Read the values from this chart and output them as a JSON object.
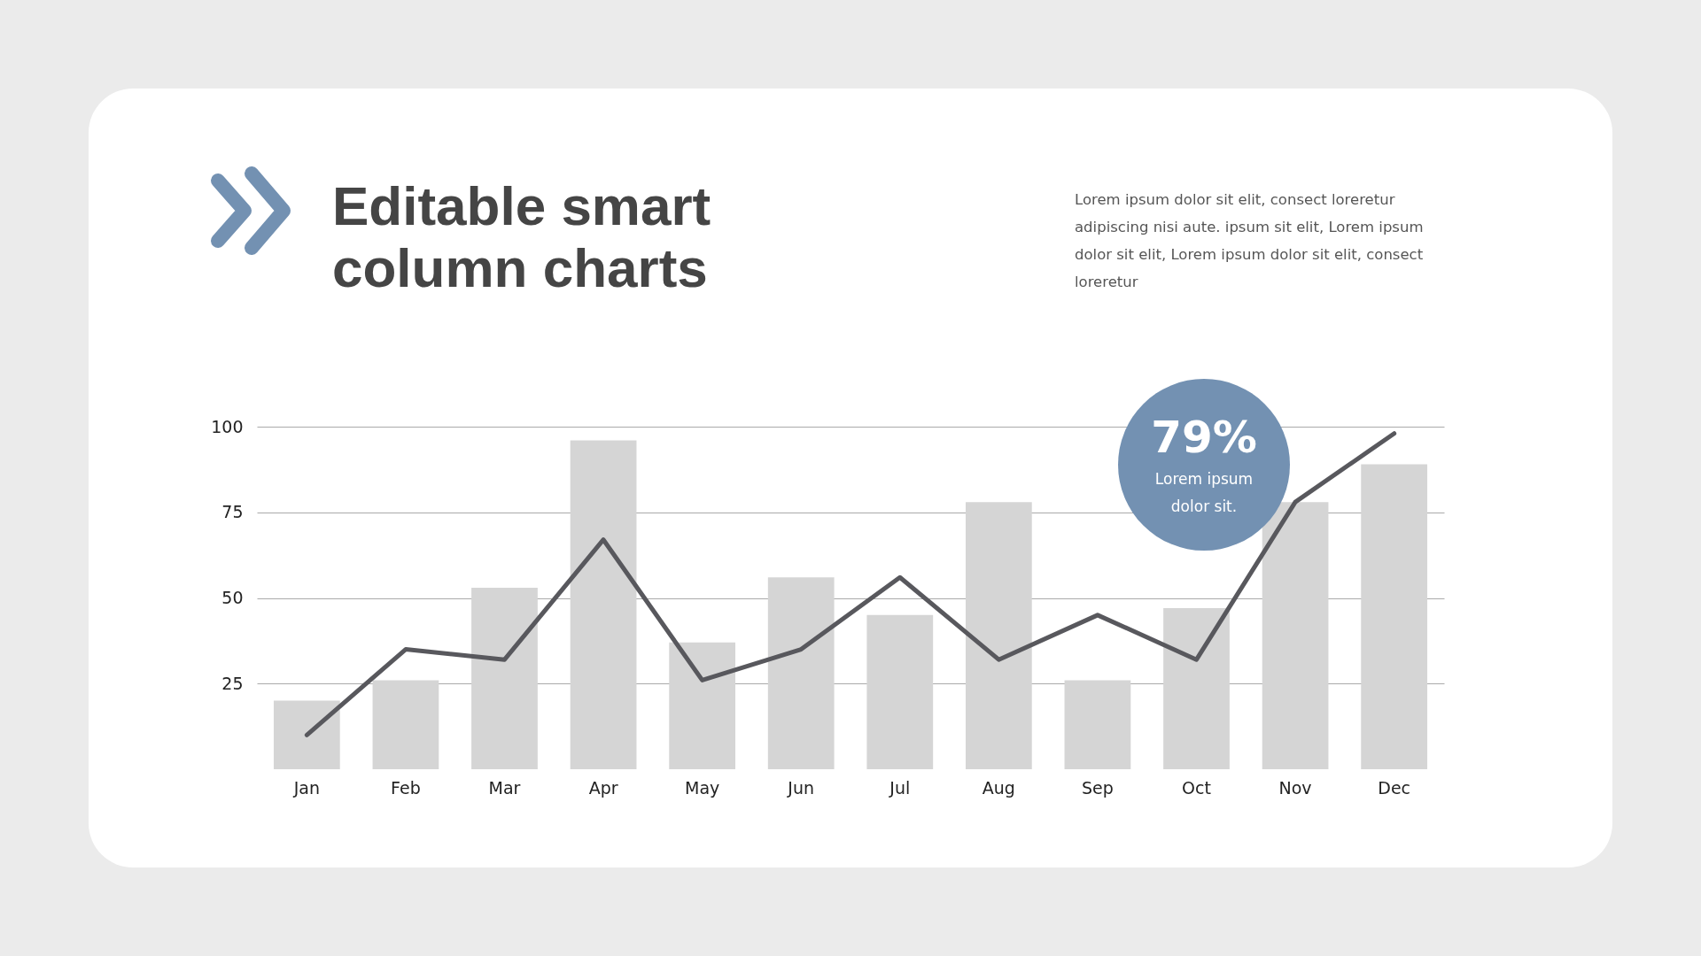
{
  "chart_data": {
    "type": "bar",
    "title": "Editable smart column charts",
    "subtitle": "Lorem ipsum dolor sit elit, consect loreretur adipiscing nisi aute. ipsum sit elit, Lorem ipsum dolor sit elit, Lorem ipsum dolor sit elit, consect loreretur",
    "categories": [
      "Jan",
      "Feb",
      "Mar",
      "Apr",
      "May",
      "Jun",
      "Jul",
      "Aug",
      "Sep",
      "Oct",
      "Nov",
      "Dec"
    ],
    "series": [
      {
        "color": "#d5d5d5",
        "values": [
          20,
          26,
          53,
          96,
          37,
          56,
          45,
          78,
          26,
          47,
          78,
          89
        ]
      },
      {
        "type": "line",
        "color": "#58585d",
        "values": [
          10,
          35,
          32,
          67,
          26,
          35,
          56,
          32,
          45,
          32,
          78,
          98
        ]
      }
    ],
    "ylim": [
      0,
      100
    ],
    "yticks": [
      25,
      50,
      75,
      100
    ],
    "grid": "y",
    "marker": "none",
    "line_style": "solid",
    "annotations": [
      "79%",
      "Lorem ipsum dolor sit."
    ]
  }
}
